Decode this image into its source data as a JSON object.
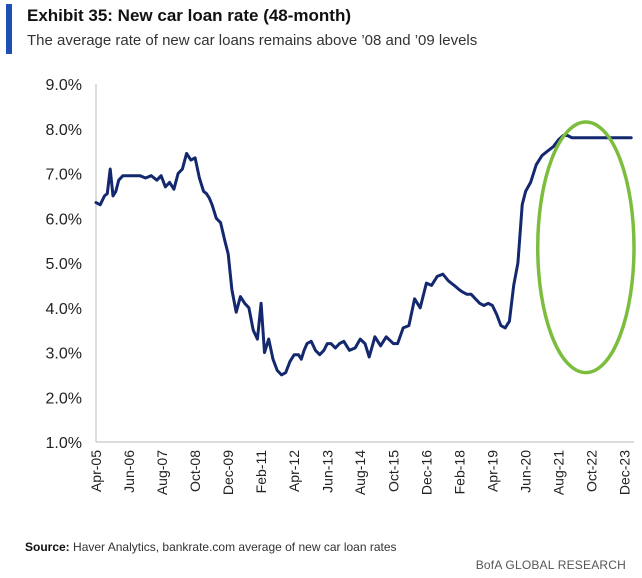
{
  "header": {
    "title": "Exhibit 35: New car loan rate (48-month)",
    "subtitle": "The average rate of new car loans remains above ’08 and ’09 levels"
  },
  "footer": {
    "source_label": "Source:",
    "source_text": "Haver Analytics, bankrate.com average of new car loan rates",
    "brand": "BofA GLOBAL RESEARCH"
  },
  "colors": {
    "line": "#13286e",
    "highlight": "#7dbd3e",
    "accent": "#1f4fb3",
    "axis": "#bbbbbb"
  },
  "chart_data": {
    "type": "line",
    "title": "New car loan rate (48-month)",
    "xlabel": "",
    "ylabel": "",
    "ylim": [
      1.0,
      9.0
    ],
    "yticks": [
      "1.0%",
      "2.0%",
      "3.0%",
      "4.0%",
      "5.0%",
      "6.0%",
      "7.0%",
      "8.0%",
      "9.0%"
    ],
    "yticks_values": [
      1,
      2,
      3,
      4,
      5,
      6,
      7,
      8,
      9
    ],
    "xlim": [
      2005.25,
      2024.25
    ],
    "xticks": [
      "Apr-05",
      "Jun-06",
      "Aug-07",
      "Oct-08",
      "Dec-09",
      "Feb-11",
      "Apr-12",
      "Jun-13",
      "Aug-14",
      "Oct-15",
      "Dec-16",
      "Feb-18",
      "Apr-19",
      "Jun-20",
      "Aug-21",
      "Oct-22",
      "Dec-23"
    ],
    "xticks_values": [
      2005.25,
      2006.42,
      2007.58,
      2008.75,
      2009.92,
      2011.08,
      2012.25,
      2013.42,
      2014.58,
      2015.75,
      2016.92,
      2018.08,
      2019.25,
      2020.42,
      2021.58,
      2022.75,
      2023.92
    ],
    "series": [
      {
        "name": "New car loan rate (48-month)",
        "x": [
          2005.25,
          2005.4,
          2005.55,
          2005.65,
          2005.75,
          2005.85,
          2005.95,
          2006.05,
          2006.2,
          2006.4,
          2006.6,
          2006.8,
          2007.0,
          2007.2,
          2007.4,
          2007.55,
          2007.7,
          2007.85,
          2008.0,
          2008.15,
          2008.3,
          2008.45,
          2008.6,
          2008.75,
          2008.9,
          2009.05,
          2009.15,
          2009.25,
          2009.35,
          2009.5,
          2009.65,
          2009.8,
          2009.92,
          2010.05,
          2010.2,
          2010.35,
          2010.5,
          2010.65,
          2010.8,
          2010.95,
          2011.08,
          2011.2,
          2011.35,
          2011.5,
          2011.65,
          2011.8,
          2011.95,
          2012.1,
          2012.25,
          2012.4,
          2012.5,
          2012.6,
          2012.7,
          2012.85,
          2013.0,
          2013.15,
          2013.3,
          2013.42,
          2013.55,
          2013.7,
          2013.85,
          2014.0,
          2014.2,
          2014.4,
          2014.58,
          2014.75,
          2014.9,
          2015.1,
          2015.3,
          2015.5,
          2015.75,
          2015.9,
          2016.1,
          2016.3,
          2016.5,
          2016.7,
          2016.92,
          2017.1,
          2017.3,
          2017.5,
          2017.7,
          2017.9,
          2018.08,
          2018.2,
          2018.35,
          2018.5,
          2018.65,
          2018.8,
          2018.95,
          2019.1,
          2019.25,
          2019.4,
          2019.55,
          2019.7,
          2019.85,
          2020.0,
          2020.15,
          2020.3,
          2020.42,
          2020.6,
          2020.8,
          2021.0,
          2021.2,
          2021.4,
          2021.58,
          2021.75,
          2021.9,
          2022.05,
          2022.2,
          2022.35,
          2022.5,
          2022.6,
          2022.75,
          2022.9,
          2023.05,
          2023.2,
          2023.35,
          2023.5,
          2023.65,
          2023.8,
          2023.92,
          2024.05,
          2024.15
        ],
        "values": [
          6.35,
          6.3,
          6.5,
          6.55,
          7.1,
          6.5,
          6.6,
          6.85,
          6.95,
          6.95,
          6.95,
          6.95,
          6.9,
          6.95,
          6.85,
          6.95,
          6.7,
          6.8,
          6.65,
          7.0,
          7.1,
          7.45,
          7.3,
          7.35,
          6.9,
          6.6,
          6.55,
          6.45,
          6.3,
          6.0,
          5.9,
          5.5,
          5.2,
          4.4,
          3.9,
          4.25,
          4.1,
          4.0,
          3.5,
          3.3,
          4.1,
          3.0,
          3.3,
          2.85,
          2.6,
          2.5,
          2.55,
          2.8,
          2.95,
          2.95,
          2.85,
          3.05,
          3.2,
          3.25,
          3.05,
          2.95,
          3.05,
          3.2,
          3.2,
          3.1,
          3.2,
          3.25,
          3.05,
          3.1,
          3.3,
          3.2,
          2.9,
          3.35,
          3.15,
          3.35,
          3.2,
          3.2,
          3.55,
          3.6,
          4.2,
          4.0,
          4.55,
          4.5,
          4.7,
          4.75,
          4.6,
          4.5,
          4.4,
          4.35,
          4.3,
          4.3,
          4.2,
          4.1,
          4.05,
          4.1,
          4.05,
          3.85,
          3.6,
          3.55,
          3.7,
          4.5,
          5.0,
          6.3,
          6.6,
          6.8,
          7.2,
          7.4,
          7.5,
          7.6,
          7.75,
          7.85,
          7.85,
          7.8,
          7.8,
          7.8,
          7.8,
          7.8,
          7.8,
          7.8,
          7.8,
          7.8,
          7.8,
          7.8,
          7.8,
          7.8,
          7.8,
          7.8,
          7.8
        ]
      }
    ],
    "annotations": [
      {
        "type": "ellipse",
        "label": "",
        "x_range": [
          2020.85,
          2024.25
        ],
        "y_range": [
          2.55,
          8.15
        ]
      }
    ]
  }
}
